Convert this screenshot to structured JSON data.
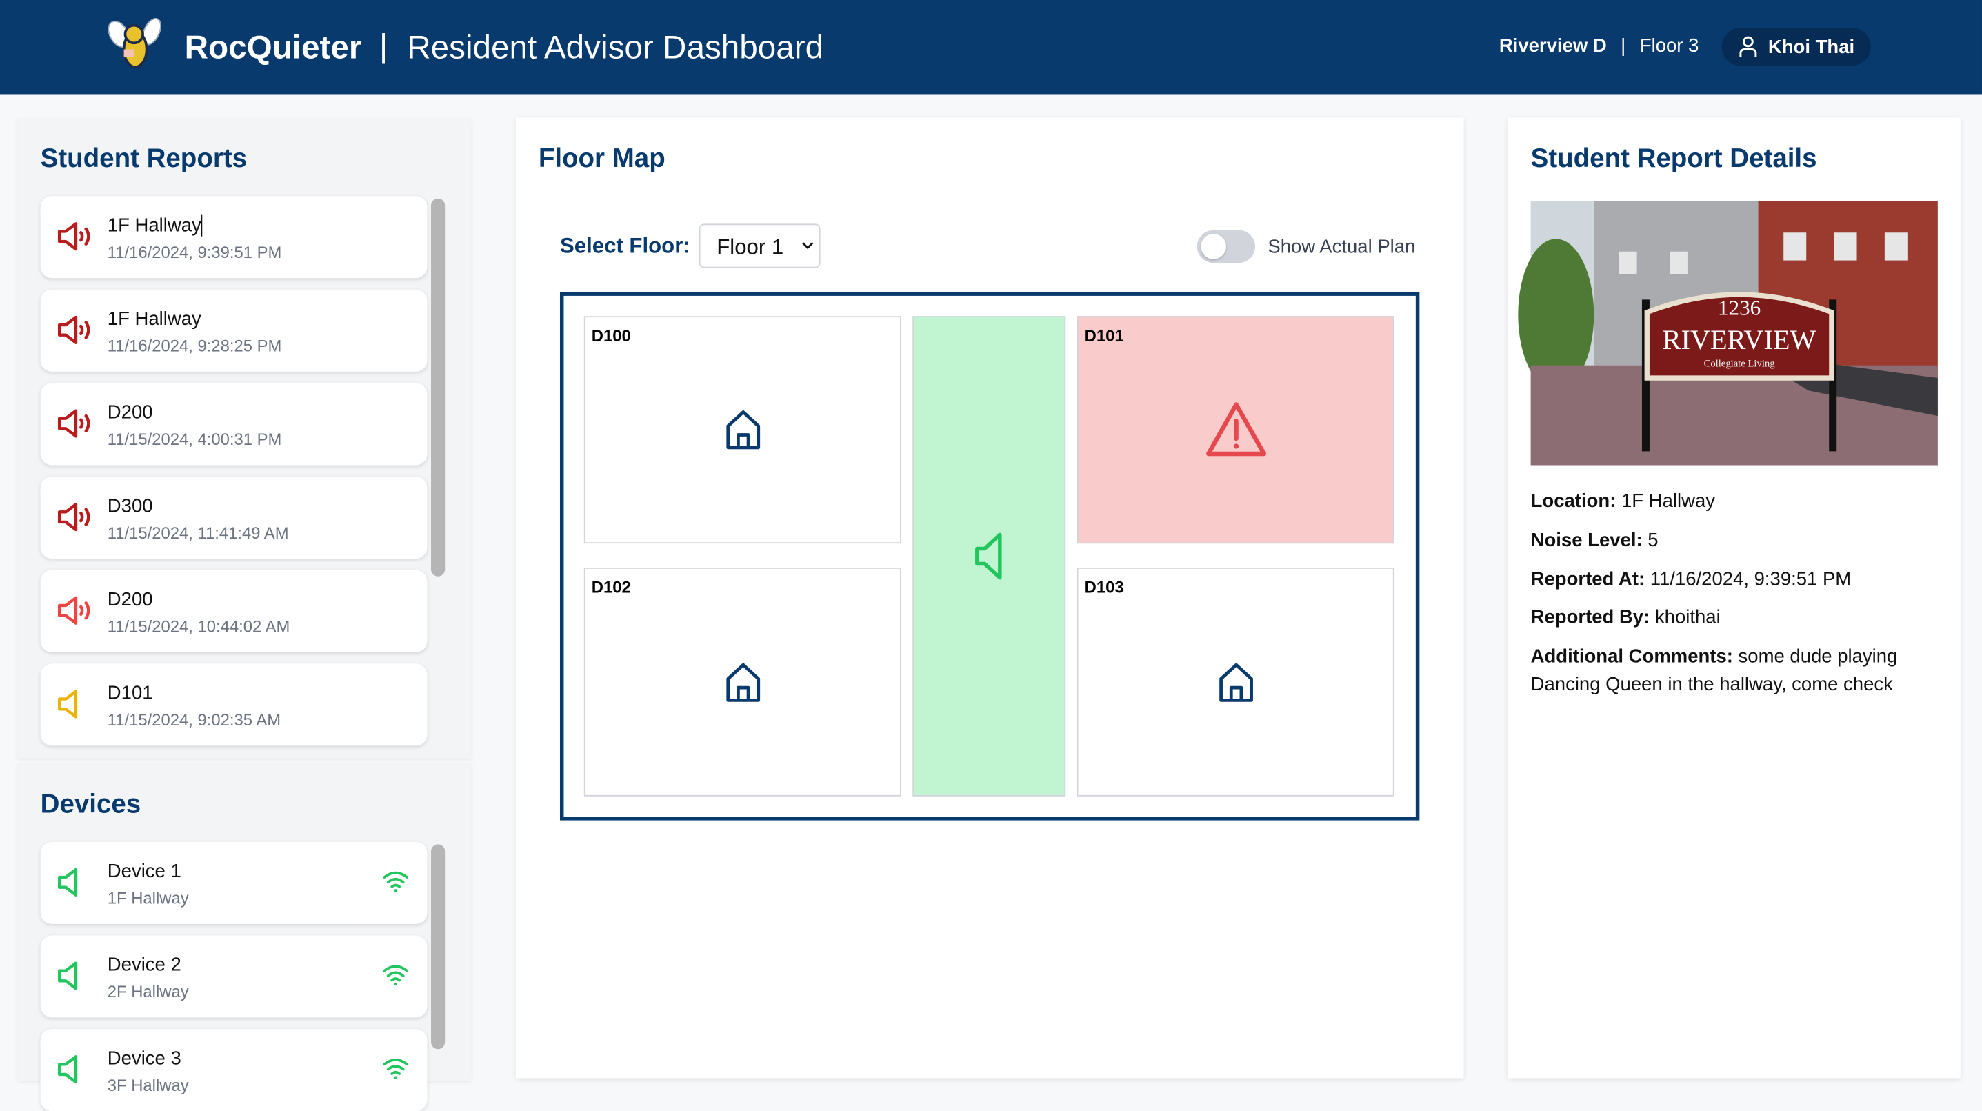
{
  "header": {
    "brand": "RocQuieter",
    "separator": "|",
    "title": "Resident Advisor Dashboard",
    "building": "Riverview D",
    "floor": "Floor 3",
    "user": "Khoi Thai",
    "logo_icon": "hornet-mascot-logo",
    "user_icon": "user-icon"
  },
  "reports": {
    "title": "Student Reports",
    "items": [
      {
        "location": "1F Hallway",
        "time": "11/16/2024, 9:39:51 PM",
        "icon": "speaker-loud-icon",
        "color": "#b91c1c"
      },
      {
        "location": "1F Hallway",
        "time": "11/16/2024, 9:28:25 PM",
        "icon": "speaker-loud-icon",
        "color": "#b91c1c"
      },
      {
        "location": "D200",
        "time": "11/15/2024, 4:00:31 PM",
        "icon": "speaker-loud-icon",
        "color": "#b91c1c"
      },
      {
        "location": "D300",
        "time": "11/15/2024, 11:41:49 AM",
        "icon": "speaker-loud-icon",
        "color": "#b91c1c"
      },
      {
        "location": "D200",
        "time": "11/15/2024, 10:44:02 AM",
        "icon": "speaker-loud-icon",
        "color": "#ef4444"
      },
      {
        "location": "D101",
        "time": "11/15/2024, 9:02:35 AM",
        "icon": "speaker-quiet-icon",
        "color": "#eab308"
      }
    ]
  },
  "devices": {
    "title": "Devices",
    "items": [
      {
        "name": "Device 1",
        "location": "1F Hallway",
        "status_icon": "wifi-icon"
      },
      {
        "name": "Device 2",
        "location": "2F Hallway",
        "status_icon": "wifi-icon"
      },
      {
        "name": "Device 3",
        "location": "3F Hallway",
        "status_icon": "wifi-icon"
      }
    ],
    "color": "#22c55e"
  },
  "floor_map": {
    "title": "Floor Map",
    "select_label": "Select Floor:",
    "selected_floor": "Floor 1",
    "toggle_label": "Show Actual Plan",
    "toggle_on": false,
    "rooms": [
      {
        "name": "D100",
        "status": "normal"
      },
      {
        "name": "D101",
        "status": "alert"
      },
      {
        "name": "D102",
        "status": "normal"
      },
      {
        "name": "D103",
        "status": "normal"
      }
    ],
    "hallway_status": "quiet",
    "colors": {
      "alert": "#f9cbcb",
      "hallway": "#c1f5d2",
      "border": "#083a6e"
    }
  },
  "details": {
    "title": "Student Report Details",
    "photo_text": {
      "number": "1236",
      "name": "RIVERVIEW",
      "sub": "Collegiate Living"
    },
    "location_label": "Location:",
    "location": "1F Hallway",
    "noise_label": "Noise Level:",
    "noise": "5",
    "reported_at_label": "Reported At:",
    "reported_at": "11/16/2024, 9:39:51 PM",
    "reported_by_label": "Reported By:",
    "reported_by": "khoithai",
    "comments_label": "Additional Comments:",
    "comments": "some dude playing Dancing Queen in the hallway, come check"
  }
}
